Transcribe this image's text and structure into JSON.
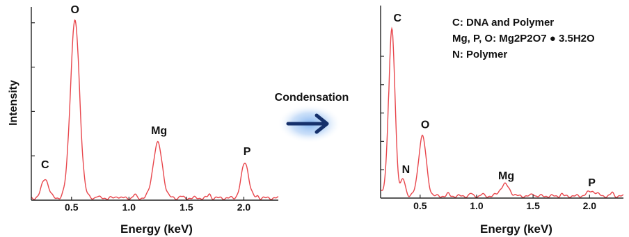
{
  "colors": {
    "spectrum": "#e8464c",
    "axis": "#222222",
    "arrow": "#15306b",
    "glow": "#7fb2f0"
  },
  "arrow": {
    "label": "Condensation",
    "icon": "right-arrow-icon"
  },
  "chart_data": [
    {
      "type": "line",
      "title": "",
      "xlabel": "Energy (keV)",
      "ylabel": "Intensity",
      "xlim": [
        0.15,
        2.3
      ],
      "ylim": [
        0,
        1.05
      ],
      "x_ticks": [
        "0.5",
        "1.0",
        "1.5",
        "2.0"
      ],
      "x_tick_values": [
        0.5,
        1.0,
        1.5,
        2.0
      ],
      "y_ticks": [
        0.25,
        0.5,
        0.75,
        1.0
      ],
      "series": [
        {
          "peaks": [
            {
              "label": "C",
              "x": 0.27,
              "y": 0.11
            },
            {
              "label": "O",
              "x": 0.53,
              "y": 1.0
            },
            {
              "label": "Mg",
              "x": 1.25,
              "y": 0.31
            },
            {
              "label": "P",
              "x": 2.01,
              "y": 0.2
            }
          ]
        }
      ]
    },
    {
      "type": "line",
      "title": "",
      "xlabel": "Energy (keV)",
      "ylabel": "",
      "xlim": [
        0.15,
        2.3
      ],
      "ylim": [
        0,
        1.0
      ],
      "x_ticks": [
        "0.5",
        "1.0",
        "1.5",
        "2.0"
      ],
      "x_tick_values": [
        0.5,
        1.0,
        1.5,
        2.0
      ],
      "y_ticks": [
        0.17,
        0.34,
        0.51,
        0.68,
        0.85
      ],
      "legend": [
        "C: DNA and Polymer",
        "Mg, P, O: Mg2P2O7 ● 3.5H2O",
        "N: Polymer"
      ],
      "series": [
        {
          "peaks": [
            {
              "label": "C",
              "x": 0.25,
              "y": 1.0
            },
            {
              "label": "N",
              "x": 0.35,
              "y": 0.1
            },
            {
              "label": "O",
              "x": 0.52,
              "y": 0.36
            },
            {
              "label": "Mg",
              "x": 1.25,
              "y": 0.07
            },
            {
              "label": "P",
              "x": 2.02,
              "y": 0.03
            }
          ]
        }
      ]
    }
  ]
}
